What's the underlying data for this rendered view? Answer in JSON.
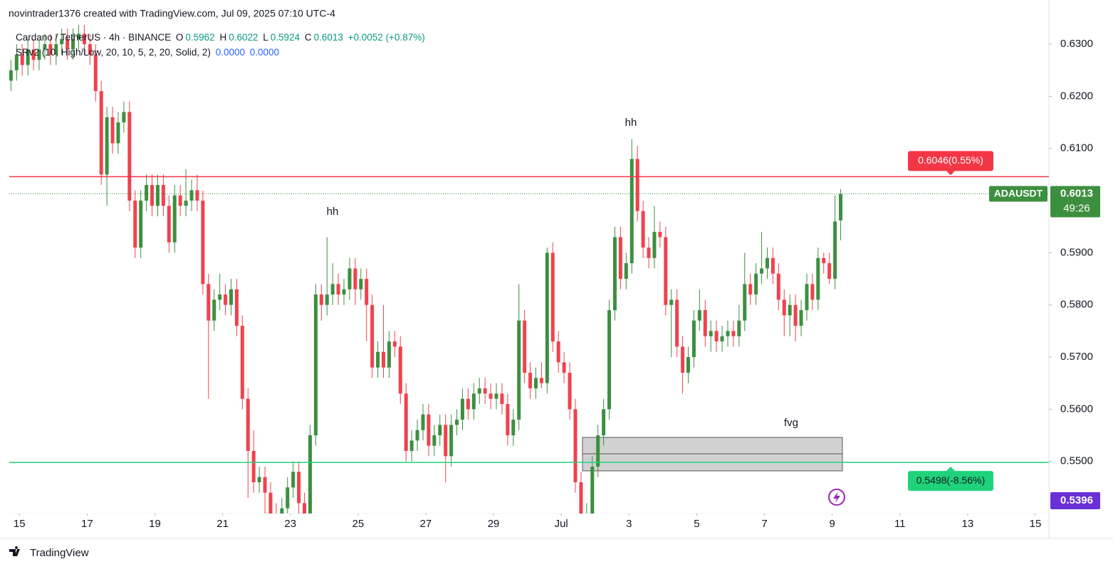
{
  "chart_data": {
    "type": "candlestick",
    "caption": "novintrader1376 created with TradingView.com, Jul 09, 2025 07:10 UTC-4",
    "symbol_info": "Cardano / TetherUS · 4h · BINANCE",
    "ohlc_letters": [
      "O",
      "H",
      "L",
      "C"
    ],
    "change": "+0.0052 (+0.87%)",
    "indicator": "SRv2 (10, High/Low, 20, 10, 5, 2, 20, Solid, 2)",
    "indicator_values": [
      "0.0000",
      "0.0000"
    ],
    "symbol": "ADAUSDT",
    "countdown": "49:26",
    "purple_label": 0.5396,
    "annotations": [
      "hh",
      "hh",
      "fvg"
    ],
    "brand": "TradingView",
    "up_color": "#3d8f40",
    "down_color": "#f0424e",
    "levels": [
      {
        "value": 0.6046,
        "label": "0.6046(0.55%)",
        "color": "#f23645"
      },
      {
        "value": 0.5498,
        "label": "0.5498(-8.56%)",
        "color": "#1ed37a"
      }
    ],
    "xlim": [
      -0.3,
      30.4
    ],
    "ylim": [
      0.54,
      0.6337
    ],
    "xticks": [
      {
        "value": 0,
        "label": "15"
      },
      {
        "value": 2,
        "label": "17"
      },
      {
        "value": 4,
        "label": "19"
      },
      {
        "value": 6,
        "label": "21"
      },
      {
        "value": 8,
        "label": "23"
      },
      {
        "value": 10,
        "label": "25"
      },
      {
        "value": 12,
        "label": "27"
      },
      {
        "value": 14,
        "label": "29"
      },
      {
        "value": 16,
        "label": "Jul"
      },
      {
        "value": 18,
        "label": "3"
      },
      {
        "value": 20,
        "label": "5"
      },
      {
        "value": 22,
        "label": "7"
      },
      {
        "value": 24,
        "label": "9"
      },
      {
        "value": 26,
        "label": "11"
      },
      {
        "value": 28,
        "label": "13"
      },
      {
        "value": 30,
        "label": "15"
      }
    ],
    "yticks": [
      {
        "value": 0.55,
        "label": "0.5500"
      },
      {
        "value": 0.56,
        "label": "0.5600"
      },
      {
        "value": 0.57,
        "label": "0.5700"
      },
      {
        "value": 0.58,
        "label": "0.5800"
      },
      {
        "value": 0.59,
        "label": "0.5900"
      },
      {
        "value": 0.61,
        "label": "0.6100"
      },
      {
        "value": 0.62,
        "label": "0.6200"
      },
      {
        "value": 0.63,
        "label": "0.6300"
      }
    ],
    "open": [
      0.623,
      0.625,
      0.628,
      0.626,
      0.629,
      0.627,
      0.629,
      0.63,
      0.628,
      0.63,
      0.631,
      0.629,
      0.631,
      0.632,
      0.63,
      0.628,
      0.621,
      0.605,
      0.616,
      0.611,
      0.615,
      0.617,
      0.6,
      0.591,
      0.6,
      0.603,
      0.599,
      0.603,
      0.599,
      0.592,
      0.601,
      0.599,
      0.6,
      0.602,
      0.6,
      0.584,
      0.577,
      0.581,
      0.582,
      0.58,
      0.583,
      0.576,
      0.562,
      0.552,
      0.546,
      0.547,
      0.544,
      0.54,
      0.538,
      0.541,
      0.545,
      0.548,
      0.542,
      0.539,
      0.555,
      0.582,
      0.58,
      0.582,
      0.584,
      0.582,
      0.583,
      0.587,
      0.583,
      0.585,
      0.58,
      0.568,
      0.571,
      0.568,
      0.573,
      0.572,
      0.563,
      0.552,
      0.554,
      0.556,
      0.559,
      0.553,
      0.555,
      0.557,
      0.551,
      0.557,
      0.558,
      0.562,
      0.56,
      0.563,
      0.564,
      0.563,
      0.562,
      0.563,
      0.561,
      0.555,
      0.558,
      0.577,
      0.567,
      0.564,
      0.566,
      0.565,
      0.59,
      0.573,
      0.569,
      0.567,
      0.56,
      0.546,
      0.539,
      0.54,
      0.549,
      0.555,
      0.56,
      0.579,
      0.593,
      0.585,
      0.588,
      0.608,
      0.598,
      0.591,
      0.589,
      0.594,
      0.593,
      0.58,
      0.581,
      0.572,
      0.567,
      0.57,
      0.577,
      0.579,
      0.574,
      0.575,
      0.573,
      0.574,
      0.575,
      0.574,
      0.577,
      0.584,
      0.582,
      0.586,
      0.587,
      0.589,
      0.586,
      0.581,
      0.578,
      0.58,
      0.576,
      0.579,
      0.584,
      0.581,
      0.589,
      0.588,
      0.585,
      0.5962
    ],
    "high": [
      0.627,
      0.63,
      0.63,
      0.631,
      0.631,
      0.631,
      0.632,
      0.632,
      0.632,
      0.633,
      0.633,
      0.633,
      0.634,
      0.634,
      0.632,
      0.63,
      0.623,
      0.618,
      0.618,
      0.617,
      0.619,
      0.619,
      0.602,
      0.602,
      0.605,
      0.605,
      0.605,
      0.605,
      0.601,
      0.603,
      0.603,
      0.606,
      0.604,
      0.605,
      0.602,
      0.586,
      0.583,
      0.586,
      0.584,
      0.585,
      0.585,
      0.578,
      0.564,
      0.556,
      0.549,
      0.549,
      0.546,
      0.542,
      0.543,
      0.547,
      0.55,
      0.55,
      0.544,
      0.557,
      0.584,
      0.584,
      0.593,
      0.588,
      0.586,
      0.585,
      0.589,
      0.589,
      0.587,
      0.587,
      0.582,
      0.573,
      0.58,
      0.575,
      0.575,
      0.574,
      0.565,
      0.556,
      0.558,
      0.561,
      0.561,
      0.557,
      0.559,
      0.559,
      0.559,
      0.56,
      0.564,
      0.564,
      0.565,
      0.566,
      0.566,
      0.565,
      0.565,
      0.565,
      0.563,
      0.56,
      0.584,
      0.579,
      0.569,
      0.568,
      0.569,
      0.591,
      0.592,
      0.575,
      0.571,
      0.569,
      0.562,
      0.548,
      0.542,
      0.551,
      0.557,
      0.562,
      0.581,
      0.595,
      0.595,
      0.59,
      0.6118,
      0.6105,
      0.6,
      0.593,
      0.599,
      0.596,
      0.595,
      0.583,
      0.583,
      0.574,
      0.572,
      0.579,
      0.583,
      0.581,
      0.577,
      0.577,
      0.576,
      0.577,
      0.577,
      0.58,
      0.59,
      0.586,
      0.588,
      0.594,
      0.591,
      0.591,
      0.588,
      0.583,
      0.582,
      0.582,
      0.581,
      0.586,
      0.586,
      0.591,
      0.59,
      0.59,
      0.601,
      0.6022
    ],
    "low": [
      0.621,
      0.623,
      0.624,
      0.624,
      0.625,
      0.625,
      0.627,
      0.626,
      0.626,
      0.628,
      0.627,
      0.627,
      0.629,
      0.628,
      0.626,
      0.619,
      0.603,
      0.599,
      0.609,
      0.609,
      0.613,
      0.598,
      0.589,
      0.589,
      0.598,
      0.597,
      0.597,
      0.597,
      0.59,
      0.59,
      0.597,
      0.597,
      0.598,
      0.598,
      0.582,
      0.562,
      0.575,
      0.579,
      0.578,
      0.578,
      0.574,
      0.56,
      0.543,
      0.544,
      0.544,
      0.54,
      0.538,
      0.537,
      0.537,
      0.539,
      0.543,
      0.54,
      0.537,
      0.537,
      0.553,
      0.577,
      0.578,
      0.58,
      0.58,
      0.58,
      0.581,
      0.58,
      0.581,
      0.573,
      0.566,
      0.566,
      0.566,
      0.566,
      0.57,
      0.561,
      0.55,
      0.55,
      0.552,
      0.554,
      0.551,
      0.551,
      0.553,
      0.546,
      0.549,
      0.555,
      0.556,
      0.558,
      0.558,
      0.561,
      0.561,
      0.56,
      0.56,
      0.559,
      0.553,
      0.553,
      0.556,
      0.565,
      0.562,
      0.562,
      0.564,
      0.563,
      0.571,
      0.567,
      0.565,
      0.558,
      0.544,
      0.537,
      0.537,
      0.538,
      0.547,
      0.553,
      0.558,
      0.577,
      0.583,
      0.583,
      0.586,
      0.596,
      0.589,
      0.587,
      0.587,
      0.591,
      0.578,
      0.57,
      0.57,
      0.563,
      0.565,
      0.568,
      0.575,
      0.572,
      0.571,
      0.571,
      0.571,
      0.572,
      0.572,
      0.572,
      0.575,
      0.58,
      0.58,
      0.584,
      0.585,
      0.584,
      0.579,
      0.574,
      0.574,
      0.573,
      0.574,
      0.577,
      0.579,
      0.579,
      0.586,
      0.584,
      0.583,
      0.5924
    ],
    "close": [
      0.625,
      0.628,
      0.626,
      0.629,
      0.627,
      0.629,
      0.63,
      0.628,
      0.63,
      0.631,
      0.629,
      0.631,
      0.632,
      0.63,
      0.628,
      0.621,
      0.605,
      0.616,
      0.611,
      0.615,
      0.617,
      0.6,
      0.591,
      0.6,
      0.603,
      0.599,
      0.603,
      0.599,
      0.592,
      0.601,
      0.599,
      0.6,
      0.602,
      0.6,
      0.584,
      0.577,
      0.581,
      0.582,
      0.58,
      0.583,
      0.576,
      0.562,
      0.552,
      0.546,
      0.547,
      0.544,
      0.54,
      0.538,
      0.541,
      0.545,
      0.548,
      0.542,
      0.539,
      0.555,
      0.582,
      0.58,
      0.582,
      0.584,
      0.582,
      0.583,
      0.587,
      0.583,
      0.585,
      0.58,
      0.568,
      0.571,
      0.568,
      0.573,
      0.572,
      0.563,
      0.552,
      0.554,
      0.556,
      0.559,
      0.553,
      0.555,
      0.557,
      0.551,
      0.557,
      0.558,
      0.562,
      0.56,
      0.563,
      0.564,
      0.563,
      0.562,
      0.563,
      0.561,
      0.555,
      0.558,
      0.577,
      0.567,
      0.564,
      0.566,
      0.565,
      0.59,
      0.573,
      0.569,
      0.567,
      0.56,
      0.546,
      0.539,
      0.54,
      0.549,
      0.555,
      0.56,
      0.579,
      0.593,
      0.585,
      0.588,
      0.608,
      0.598,
      0.591,
      0.589,
      0.594,
      0.593,
      0.58,
      0.581,
      0.572,
      0.567,
      0.57,
      0.577,
      0.579,
      0.574,
      0.575,
      0.573,
      0.574,
      0.575,
      0.574,
      0.577,
      0.584,
      0.582,
      0.586,
      0.587,
      0.589,
      0.586,
      0.581,
      0.578,
      0.58,
      0.576,
      0.579,
      0.584,
      0.581,
      0.589,
      0.588,
      0.585,
      0.596,
      0.6013
    ]
  }
}
